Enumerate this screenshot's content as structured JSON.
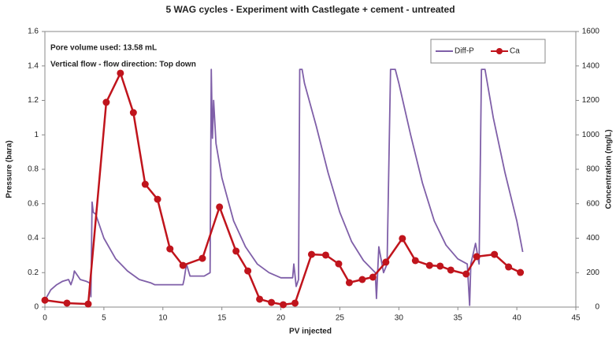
{
  "chart_data": {
    "type": "line",
    "title": "5 WAG cycles - Experiment with Castlegate + cement - untreated",
    "annotations": [
      "Pore volume used: 13.58 mL",
      "Vertical flow - flow direction: Top down"
    ],
    "x_label": "PV injected",
    "y_label": "Pressure (bara)",
    "y2_label": "Concentration (mg/L)",
    "xlim": [
      0,
      45
    ],
    "xticks": [
      0,
      5,
      10,
      15,
      20,
      25,
      30,
      35,
      40,
      45
    ],
    "ylim": [
      0,
      1.6
    ],
    "yticks": [
      0,
      0.2,
      0.4,
      0.6,
      0.8,
      1,
      1.2,
      1.4,
      1.6
    ],
    "y2lim": [
      0,
      1600
    ],
    "y2ticks": [
      0,
      200,
      400,
      600,
      800,
      1000,
      1200,
      1400,
      1600
    ],
    "grid": false,
    "legend": "upper right",
    "series": [
      {
        "name": "Diff-P",
        "color": "#7f5fa8",
        "markers": false,
        "x": [
          0,
          0.5,
          1,
          1.5,
          2,
          2.2,
          2.4,
          2.5,
          2.8,
          3,
          3.5,
          3.8,
          3.9,
          4.0,
          4.1,
          4.3,
          5,
          6,
          7,
          8,
          9,
          9.3,
          11.7,
          11.8,
          12,
          12.3,
          13.5,
          14,
          14.1,
          14.2,
          14.3,
          14.5,
          15,
          16,
          17,
          18,
          19,
          20,
          21,
          21.1,
          21.3,
          21.5,
          21.6,
          21.8,
          22,
          23,
          24,
          25,
          26,
          27,
          28,
          28.1,
          28.3,
          28.7,
          29,
          29.3,
          29.7,
          30,
          31,
          32,
          33,
          34,
          35,
          35.8,
          36,
          36.1,
          36.5,
          36.8,
          37,
          37.3,
          37.5,
          38,
          39,
          40,
          40.5
        ],
        "values": [
          0.04,
          0.1,
          0.13,
          0.15,
          0.16,
          0.13,
          0.17,
          0.21,
          0.18,
          0.16,
          0.15,
          0.14,
          0.06,
          0.61,
          0.55,
          0.54,
          0.4,
          0.28,
          0.21,
          0.16,
          0.14,
          0.13,
          0.13,
          0.16,
          0.25,
          0.18,
          0.18,
          0.2,
          1.38,
          0.98,
          1.2,
          0.95,
          0.75,
          0.5,
          0.35,
          0.25,
          0.2,
          0.17,
          0.17,
          0.25,
          0.12,
          0.16,
          1.38,
          1.38,
          1.3,
          1.05,
          0.78,
          0.55,
          0.38,
          0.27,
          0.2,
          0.05,
          0.35,
          0.2,
          0.25,
          1.38,
          1.38,
          1.3,
          1.0,
          0.72,
          0.5,
          0.36,
          0.28,
          0.25,
          0.01,
          0.25,
          0.37,
          0.25,
          1.38,
          1.38,
          1.3,
          1.1,
          0.78,
          0.5,
          0.32
        ]
      },
      {
        "name": "Ca",
        "color": "#c0141c",
        "markers": true,
        "axis": "y2",
        "x": [
          0,
          1.87,
          3.67,
          5.2,
          6.4,
          7.5,
          8.5,
          9.55,
          10.6,
          11.7,
          13.35,
          14.8,
          16.2,
          17.2,
          18.2,
          19.2,
          20.2,
          21.2,
          22.6,
          23.8,
          24.9,
          25.8,
          26.9,
          27.8,
          28.9,
          30.3,
          31.4,
          32.6,
          33.5,
          34.4,
          35.7,
          36.6,
          38.1,
          39.3,
          40.3
        ],
        "values": [
          40,
          23,
          18,
          1189,
          1358,
          1129,
          713,
          626,
          338,
          242,
          283,
          581,
          325,
          210,
          46,
          27,
          14,
          23,
          306,
          302,
          251,
          142,
          160,
          174,
          261,
          398,
          270,
          242,
          238,
          215,
          192,
          293,
          306,
          233,
          201
        ]
      }
    ]
  }
}
